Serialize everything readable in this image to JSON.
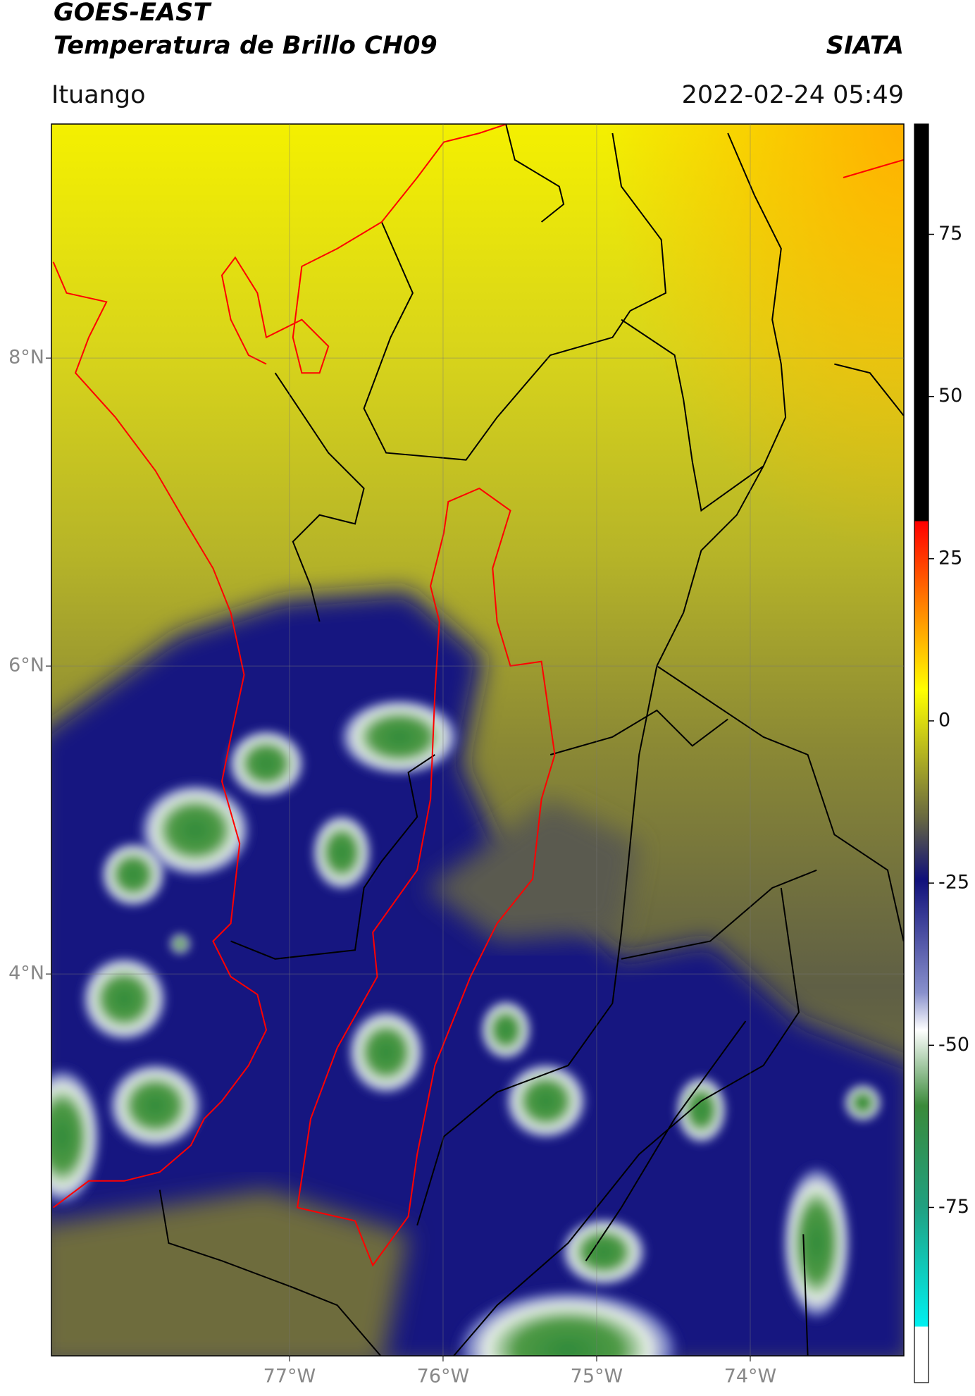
{
  "header": {
    "satellite": "GOES-EAST",
    "product": "Temperatura de Brillo CH09",
    "agency": "SIATA",
    "location": "Ituango",
    "datetime": "2022-02-24 05:49"
  },
  "map": {
    "lon_range": [
      -78.55,
      -73.0
    ],
    "lat_range": [
      1.52,
      9.52
    ],
    "lat_ticks": [
      {
        "value": 8,
        "label": "8°N"
      },
      {
        "value": 6,
        "label": "6°N"
      },
      {
        "value": 4,
        "label": "4°N"
      }
    ],
    "lon_ticks": [
      {
        "value": -77,
        "label": "77°W"
      },
      {
        "value": -76,
        "label": "76°W"
      },
      {
        "value": -75,
        "label": "75°W"
      },
      {
        "value": -74,
        "label": "74°W"
      }
    ]
  },
  "colorbar": {
    "range": [
      -102,
      92
    ],
    "ticks": [
      75,
      50,
      25,
      0,
      -25,
      -50,
      -75
    ]
  }
}
